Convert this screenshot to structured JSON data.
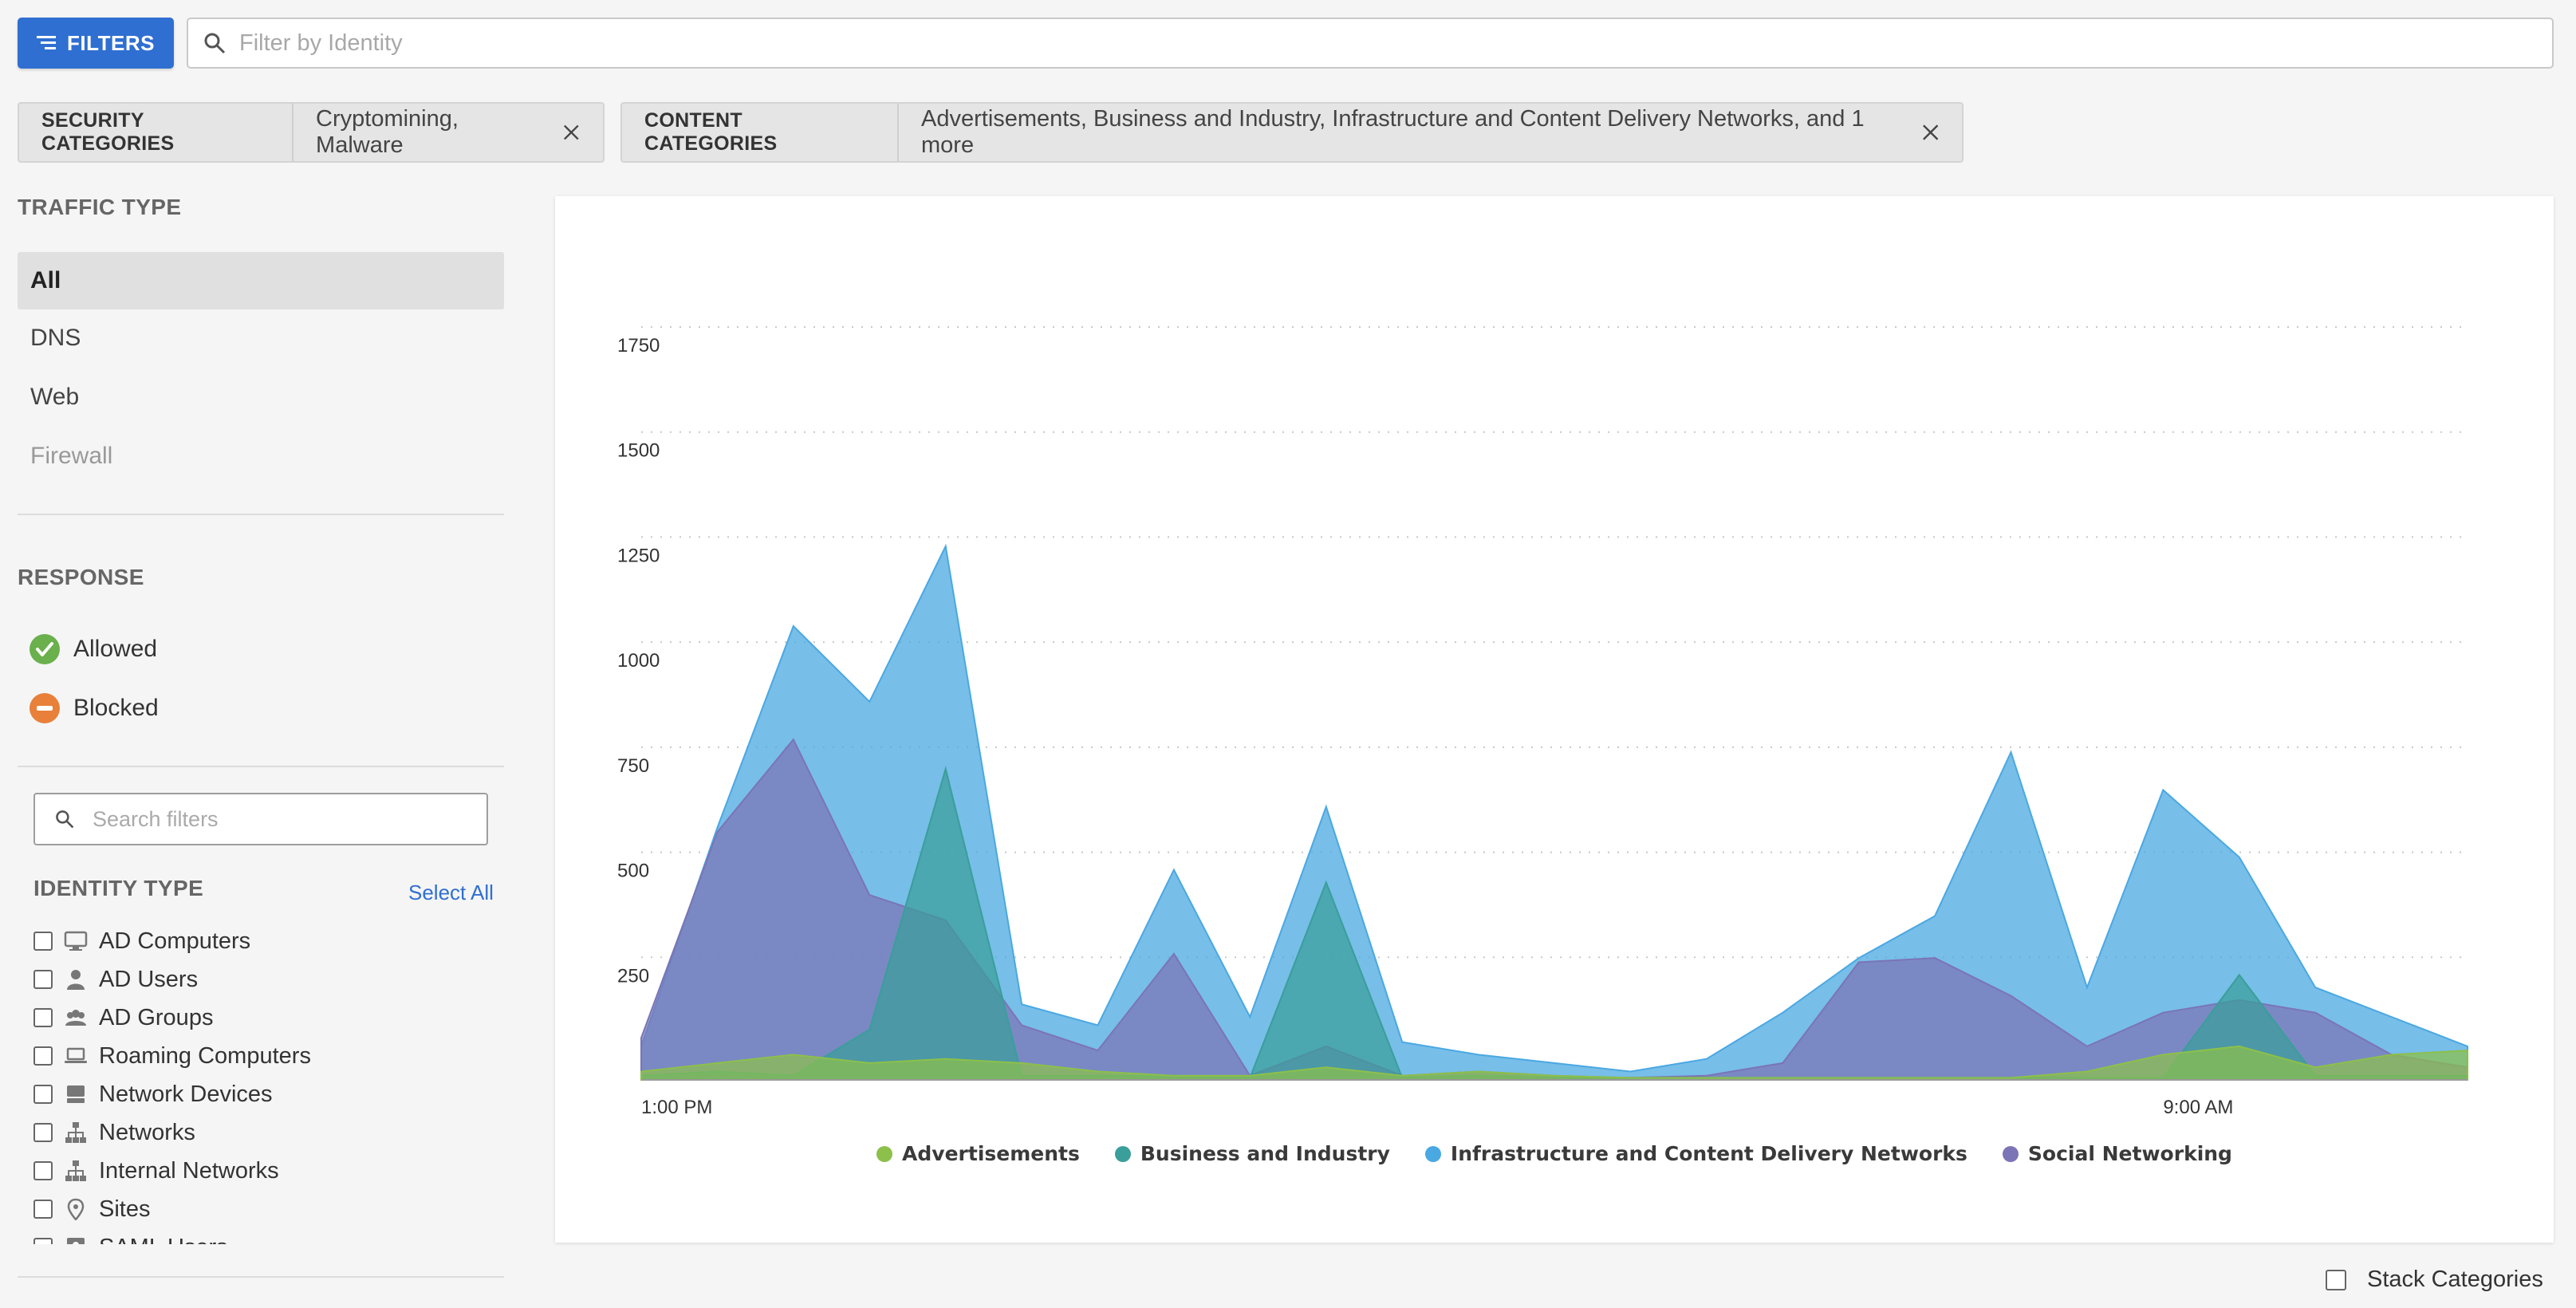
{
  "toolbar": {
    "filters_label": "FILTERS",
    "identity_placeholder": "Filter by Identity"
  },
  "chips": [
    {
      "label": "SECURITY CATEGORIES",
      "value": "Cryptomining, Malware"
    },
    {
      "label": "CONTENT CATEGORIES",
      "value": "Advertisements, Business and Industry, Infrastructure and Content Delivery Networks, and 1 more"
    }
  ],
  "sidebar": {
    "traffic_type_title": "TRAFFIC TYPE",
    "traffic_types": [
      {
        "label": "All",
        "state": "selected"
      },
      {
        "label": "DNS",
        "state": "normal"
      },
      {
        "label": "Web",
        "state": "normal"
      },
      {
        "label": "Firewall",
        "state": "disabled"
      }
    ],
    "response_title": "RESPONSE",
    "responses": [
      {
        "label": "Allowed",
        "icon": "check-circle-icon",
        "color": "#6ab04c"
      },
      {
        "label": "Blocked",
        "icon": "minus-circle-icon",
        "color": "#e8803a"
      }
    ],
    "search_placeholder": "Search filters",
    "identity_type_title": "IDENTITY TYPE",
    "select_all_label": "Select All",
    "identity_types": [
      {
        "label": "AD Computers",
        "icon": "monitor-icon"
      },
      {
        "label": "AD Users",
        "icon": "user-icon"
      },
      {
        "label": "AD Groups",
        "icon": "group-icon"
      },
      {
        "label": "Roaming Computers",
        "icon": "laptop-icon"
      },
      {
        "label": "Network Devices",
        "icon": "network-device-icon"
      },
      {
        "label": "Networks",
        "icon": "network-icon"
      },
      {
        "label": "Internal Networks",
        "icon": "network-icon"
      },
      {
        "label": "Sites",
        "icon": "location-pin-icon"
      },
      {
        "label": "SAML Users",
        "icon": "saml-user-icon"
      }
    ]
  },
  "chart_data": {
    "type": "area",
    "x_tick_labels": [
      "1:00 PM",
      "9:00 AM"
    ],
    "ylim": [
      0,
      1750
    ],
    "y_ticks": [
      250,
      500,
      750,
      1000,
      1250,
      1500,
      1750
    ],
    "grid": true,
    "legend_position": "bottom",
    "point_count": 25,
    "series": [
      {
        "name": "Advertisements",
        "color": "#8cc04a",
        "values": [
          20,
          40,
          60,
          40,
          50,
          40,
          20,
          10,
          10,
          30,
          10,
          20,
          10,
          5,
          5,
          5,
          5,
          5,
          5,
          20,
          60,
          80,
          30,
          60,
          70
        ]
      },
      {
        "name": "Business and Industry",
        "color": "#3a9e9a",
        "values": [
          10,
          20,
          10,
          120,
          740,
          10,
          10,
          10,
          5,
          470,
          5,
          10,
          5,
          5,
          5,
          5,
          5,
          5,
          5,
          5,
          5,
          250,
          10,
          10,
          10
        ]
      },
      {
        "name": "Infrastructure and Content Delivery Networks",
        "color": "#4aa8e2",
        "values": [
          80,
          600,
          1080,
          900,
          1270,
          180,
          130,
          500,
          150,
          650,
          90,
          60,
          40,
          20,
          50,
          160,
          290,
          390,
          780,
          220,
          690,
          530,
          220,
          150,
          80
        ]
      },
      {
        "name": "Social Networking",
        "color": "#7b74b6",
        "values": [
          100,
          590,
          810,
          440,
          380,
          130,
          70,
          300,
          10,
          80,
          10,
          20,
          10,
          5,
          10,
          40,
          280,
          290,
          200,
          80,
          160,
          190,
          160,
          60,
          30
        ]
      }
    ]
  },
  "stack_categories_label": "Stack Categories"
}
